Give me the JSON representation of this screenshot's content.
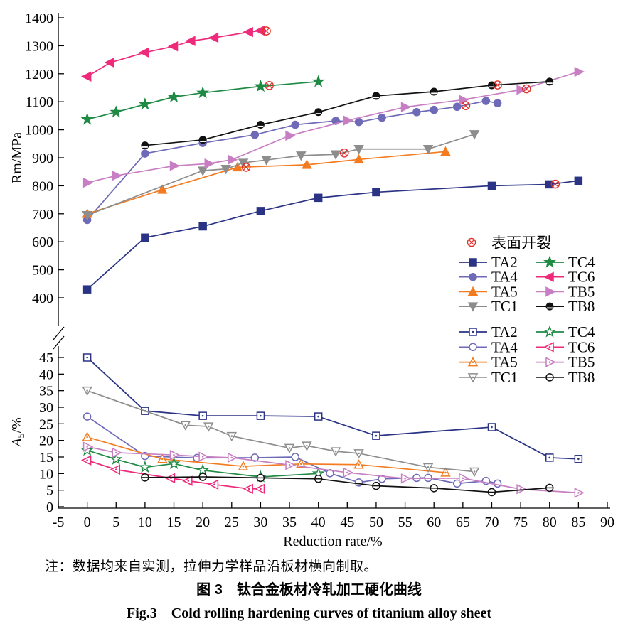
{
  "figure": {
    "note": "注：数据均来自实测，拉伸力学样品沿板材横向制取。",
    "caption_cn": "图 3　钛合金板材冷轧加工硬化曲线",
    "caption_en": "Fig.3　Cold rolling hardening curves of titanium alloy sheet"
  },
  "chart_data": [
    {
      "type": "line",
      "section": "top",
      "title": "",
      "ylabel": "Rm/MPa",
      "ylim": [
        400,
        1400
      ],
      "yticks": [
        400,
        500,
        600,
        700,
        800,
        900,
        1000,
        1100,
        1200,
        1300,
        1400
      ],
      "xlim": [
        -5,
        90
      ],
      "grid": false,
      "legend_position": "right-middle",
      "crack_legend_label": "表面开裂",
      "crack_color": "#e0312a",
      "marker_style": "filled",
      "series": [
        {
          "name": "TA2",
          "color": "#2b3385",
          "marker": "square",
          "x": [
            0,
            10,
            20,
            30,
            40,
            50,
            70,
            80,
            85
          ],
          "y": [
            430,
            615,
            655,
            710,
            757,
            777,
            800,
            805,
            818
          ],
          "crack": [
            81,
            806
          ]
        },
        {
          "name": "TA4",
          "color": "#6e6ab8",
          "marker": "circle",
          "x": [
            0,
            10,
            20,
            29,
            36,
            43,
            47,
            51,
            57,
            60,
            64,
            69,
            71
          ],
          "y": [
            678,
            915,
            953,
            982,
            1018,
            1032,
            1028,
            1043,
            1063,
            1071,
            1082,
            1103,
            1095
          ],
          "crack": [
            65.5,
            1086
          ]
        },
        {
          "name": "TA5",
          "color": "#f47b20",
          "marker": "triangle-up",
          "x": [
            0,
            13,
            26,
            38,
            47,
            62
          ],
          "y": [
            700,
            786,
            866,
            875,
            894,
            922
          ],
          "crack": [
            27.5,
            866
          ]
        },
        {
          "name": "TC1",
          "color": "#8d8d8d",
          "marker": "triangle-down",
          "x": [
            0,
            20,
            24,
            27,
            31,
            37,
            43,
            47,
            59,
            67
          ],
          "y": [
            695,
            854,
            860,
            882,
            892,
            908,
            912,
            931,
            931,
            984
          ],
          "crack": [
            44.5,
            917
          ]
        },
        {
          "name": "TC4",
          "color": "#1f8a44",
          "marker": "star",
          "x": [
            0,
            5,
            10,
            15,
            20,
            30,
            40
          ],
          "y": [
            1037,
            1063,
            1091,
            1117,
            1132,
            1155,
            1172
          ],
          "crack": [
            31.5,
            1158
          ]
        },
        {
          "name": "TC6",
          "color": "#ee2a7b",
          "marker": "triangle-left",
          "x": [
            0,
            4,
            10,
            15,
            18,
            22,
            28,
            30
          ],
          "y": [
            1190,
            1240,
            1276,
            1298,
            1317,
            1329,
            1349,
            1354
          ],
          "crack": [
            31,
            1353
          ]
        },
        {
          "name": "TB5",
          "color": "#c77ec2",
          "marker": "triangle-right",
          "x": [
            0,
            5,
            15,
            21,
            25,
            35,
            45,
            55,
            65,
            75,
            85
          ],
          "y": [
            811,
            836,
            871,
            879,
            893,
            979,
            1033,
            1081,
            1107,
            1143,
            1207
          ],
          "crack": [
            76,
            1146
          ]
        },
        {
          "name": "TB8",
          "color": "#111111",
          "marker": "circle-split",
          "x": [
            10,
            20,
            30,
            40,
            50,
            60,
            70,
            80
          ],
          "y": [
            944,
            964,
            1018,
            1063,
            1121,
            1136,
            1159,
            1172
          ],
          "crack": [
            71,
            1160
          ]
        }
      ]
    },
    {
      "type": "line",
      "section": "bottom",
      "title": "",
      "ylabel": "A5/%",
      "ylabel_parts": {
        "base": "A",
        "sub": "5",
        "rest": "/%"
      },
      "ylim": [
        0,
        45
      ],
      "yticks": [
        0,
        5,
        10,
        15,
        20,
        25,
        30,
        35,
        40,
        45
      ],
      "xlabel": "Reduction rate/%",
      "xlim": [
        -5,
        90
      ],
      "xticks": [
        -5,
        0,
        5,
        10,
        15,
        20,
        25,
        30,
        35,
        40,
        45,
        50,
        55,
        60,
        65,
        70,
        75,
        80,
        85,
        90
      ],
      "grid": false,
      "legend_position": "right-top",
      "marker_style": "open",
      "series": [
        {
          "name": "TA2",
          "color": "#2b3385",
          "marker": "square",
          "x": [
            0,
            10,
            20,
            30,
            40,
            50,
            70,
            80,
            85
          ],
          "y": [
            45,
            28.9,
            27.4,
            27.4,
            27.2,
            21.4,
            24,
            14.8,
            14.4
          ]
        },
        {
          "name": "TA4",
          "color": "#6e6ab8",
          "marker": "circle",
          "x": [
            0,
            10,
            19,
            29,
            36,
            42,
            47,
            51,
            57,
            59,
            64,
            69,
            71
          ],
          "y": [
            27.2,
            15.3,
            14.7,
            14.8,
            15,
            10.1,
            7.3,
            8.4,
            8.7,
            8.7,
            7,
            7.8,
            7
          ]
        },
        {
          "name": "TA5",
          "color": "#f47b20",
          "marker": "triangle-up",
          "x": [
            0,
            13,
            27,
            37,
            47,
            62
          ],
          "y": [
            21,
            14.4,
            12.2,
            12.9,
            12.7,
            10.3
          ]
        },
        {
          "name": "TC1",
          "color": "#8d8d8d",
          "marker": "triangle-down",
          "x": [
            0,
            17,
            21,
            25,
            35,
            38,
            43,
            47,
            59,
            67
          ],
          "y": [
            35,
            24.6,
            24.2,
            21.3,
            17.7,
            18.4,
            16.7,
            16.1,
            11.9,
            10.6
          ]
        },
        {
          "name": "TC4",
          "color": "#1f8a44",
          "marker": "star",
          "x": [
            0,
            5,
            10,
            15,
            20,
            30,
            40
          ],
          "y": [
            17,
            14.3,
            11.9,
            13,
            11,
            9,
            10
          ]
        },
        {
          "name": "TC6",
          "color": "#ee2a7b",
          "marker": "triangle-left",
          "x": [
            0,
            5,
            14.5,
            17.5,
            22,
            28,
            30
          ],
          "y": [
            14,
            11.2,
            8.6,
            7.8,
            6.7,
            5.4,
            5.4
          ]
        },
        {
          "name": "TB5",
          "color": "#c77ec2",
          "marker": "triangle-right",
          "x": [
            0,
            5,
            15,
            20,
            25,
            35,
            45,
            55,
            65,
            75,
            85
          ],
          "y": [
            18.1,
            16.3,
            15.6,
            15.1,
            14.8,
            12.6,
            10.3,
            8.5,
            8.6,
            5.3,
            4.2
          ]
        },
        {
          "name": "TB8",
          "color": "#111111",
          "marker": "circle-split",
          "x": [
            10,
            20,
            30,
            40,
            50,
            60,
            70,
            80
          ],
          "y": [
            8.8,
            9,
            8.7,
            8.4,
            6.3,
            5.6,
            4.4,
            5.7
          ]
        }
      ]
    }
  ]
}
